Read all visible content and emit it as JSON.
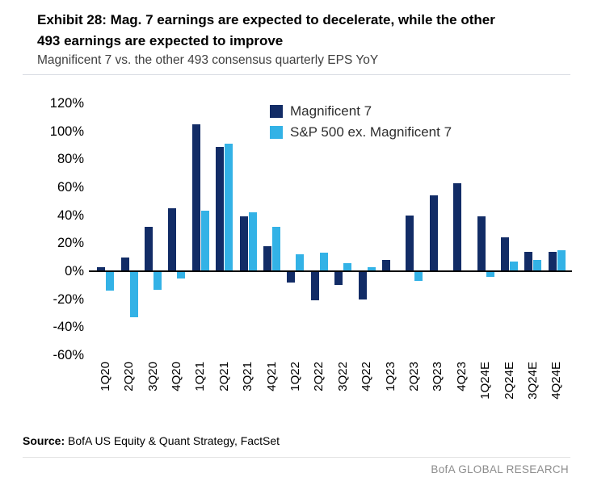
{
  "header": {
    "title_line1": "Exhibit 28: Mag. 7 earnings are expected to decelerate, while the other",
    "title_line2": "493 earnings are expected to improve",
    "subtitle": "Magnificent 7 vs. the other 493 consensus quarterly EPS YoY"
  },
  "colors": {
    "navy": "#122c66",
    "light_blue": "#33b2e6",
    "accent_bar": "#122c66"
  },
  "chart_data": {
    "type": "bar",
    "title": "Exhibit 28: Mag. 7 earnings are expected to decelerate, while the other 493 earnings are expected to improve",
    "subtitle": "Magnificent 7 vs. the other 493 consensus quarterly EPS YoY",
    "categories": [
      "1Q20",
      "2Q20",
      "3Q20",
      "4Q20",
      "1Q21",
      "2Q21",
      "3Q21",
      "4Q21",
      "1Q22",
      "2Q22",
      "3Q22",
      "4Q22",
      "1Q23",
      "2Q23",
      "3Q23",
      "4Q23",
      "1Q24E",
      "2Q24E",
      "3Q24E",
      "4Q24E"
    ],
    "series": [
      {
        "name": "Magnificent 7",
        "color": "#122c66",
        "values": [
          3,
          10,
          32,
          45,
          105,
          89,
          39,
          18,
          -8,
          -21,
          -10,
          -20,
          8,
          40,
          54,
          63,
          39,
          24,
          14,
          14
        ]
      },
      {
        "name": "S&P 500 ex. Magnificent 7",
        "color": "#33b2e6",
        "values": [
          -14,
          -33,
          -13,
          -5,
          43,
          91,
          42,
          32,
          12,
          13,
          6,
          3,
          0,
          -7,
          0,
          0,
          -4,
          7,
          8,
          15
        ]
      }
    ],
    "xlabel": "",
    "ylabel": "",
    "ylim": [
      -60,
      120
    ],
    "yticks": [
      120,
      100,
      80,
      60,
      40,
      20,
      0,
      -20,
      -40,
      -60
    ],
    "ytick_suffix": "%",
    "grid": false,
    "legend_position": "top-center"
  },
  "footer": {
    "source_label": "Source:",
    "source_text": " BofA US Equity & Quant Strategy, FactSet",
    "branding": "BofA GLOBAL RESEARCH"
  }
}
